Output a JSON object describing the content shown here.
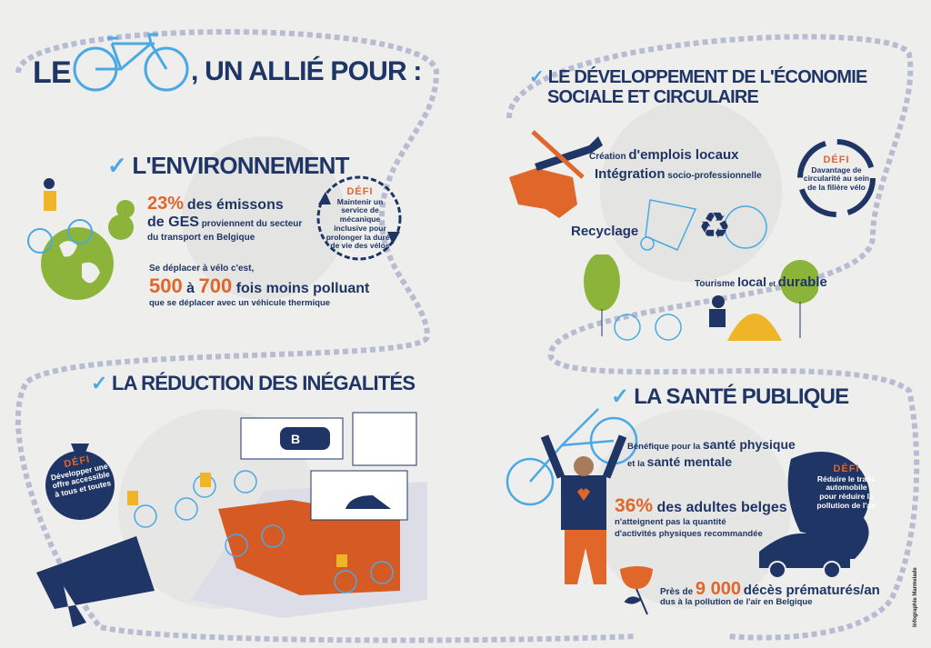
{
  "title": {
    "prefix": "LE",
    "suffix": ", UN ALLIÉ POUR :"
  },
  "environment": {
    "heading": "L'ENVIRONNEMENT",
    "stat1_value": "23%",
    "stat1_text": "des émissons",
    "stat1_line2_big": "de GES",
    "stat1_line2": "proviennent du secteur",
    "stat1_line3": "du transport en Belgique",
    "stat2_intro": "Se déplacer à vélo c'est,",
    "stat2_from": "500",
    "stat2_a": "à",
    "stat2_to": "700",
    "stat2_text": "fois moins polluant",
    "stat2_line3": "que se déplacer avec un véhicule thermique",
    "defi_label": "DÉFI",
    "defi_text": "Maintenir un service de mécanique inclusive pour prolonger la durée de vie des vélos"
  },
  "economy": {
    "heading_line1": "LE DÉVELOPPEMENT DE L'ÉCONOMIE",
    "heading_line2": "SOCIALE ET CIRCULAIRE",
    "jobs_small": "Création",
    "jobs_big": "d'emplois locaux",
    "integration_big": "Intégration",
    "integration_small": "socio-professionnelle",
    "recycling": "Recyclage",
    "tourism_small": "Tourisme",
    "tourism_local": "local",
    "tourism_and": "et",
    "tourism_durable": "durable",
    "defi_label": "DÉFI",
    "defi_text": "Davantage de circularité au sein de la filière vélo"
  },
  "inequality": {
    "heading": "LA RÉDUCTION DES INÉGALITÉS",
    "defi_label": "DÉFI",
    "defi_text": "Développer une offre accessible à tous et toutes",
    "train_logo": "B"
  },
  "health": {
    "heading": "LA SANTÉ PUBLIQUE",
    "benefit_small1": "Bénéfique pour la",
    "benefit_big1": "santé physique",
    "benefit_small2": "et la",
    "benefit_big2": "santé mentale",
    "stat1_value": "36%",
    "stat1_text": "des adultes belges",
    "stat1_line2": "n'atteignent pas la quantité",
    "stat1_line3": "d'activités physiques recommandée",
    "stat2_prefix": "Près de",
    "stat2_value": "9 000",
    "stat2_text": "décès prématurés/an",
    "stat2_line2": "dus à la pollution de l'air en Belgique",
    "defi_label": "DÉFI",
    "defi_text": "Réduire le trafic automobile pour réduire la pollution de l'air"
  },
  "credit": "Infographie Marmelade",
  "colors": {
    "navy": "#1f3566",
    "orange": "#e0662a",
    "blue": "#4aa9e4",
    "green": "#8cb43a",
    "yellow": "#f0b429",
    "chain": "#b8bcd2"
  }
}
